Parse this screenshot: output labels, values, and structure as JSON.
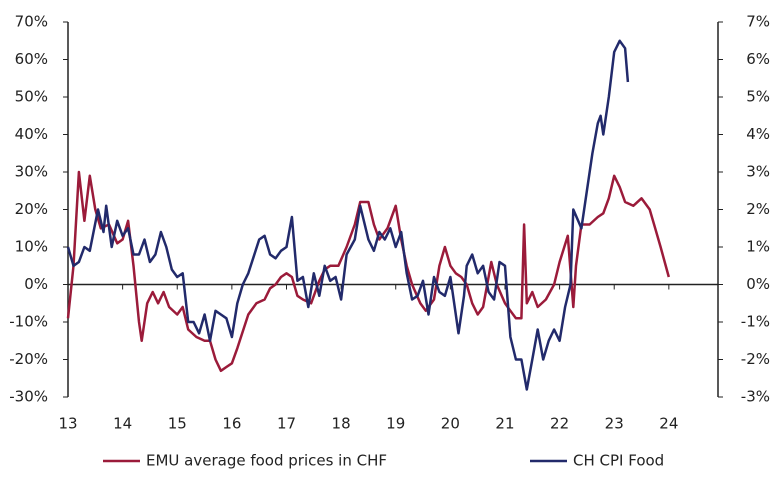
{
  "chart_data": {
    "type": "line",
    "xlim": [
      13,
      24.9
    ],
    "xticks": [
      13,
      14,
      15,
      16,
      17,
      18,
      19,
      20,
      21,
      22,
      23,
      24
    ],
    "ylim": [
      -30,
      70
    ],
    "yticks": [
      {
        "value": -30,
        "label": "-30%"
      },
      {
        "value": -20,
        "label": "-20%"
      },
      {
        "value": -10,
        "label": "-10%"
      },
      {
        "value": 0,
        "label": "0%"
      },
      {
        "value": 10,
        "label": "10%"
      },
      {
        "value": 20,
        "label": "20%"
      },
      {
        "value": 30,
        "label": "30%"
      },
      {
        "value": 40,
        "label": "40%"
      },
      {
        "value": 50,
        "label": "50%"
      },
      {
        "value": 60,
        "label": "60%"
      },
      {
        "value": 70,
        "label": "70%"
      }
    ],
    "y2lim": [
      -3,
      7
    ],
    "y2ticks": [
      {
        "value": -3,
        "label": "-3%"
      },
      {
        "value": -2,
        "label": "-2%"
      },
      {
        "value": -1,
        "label": "-1%"
      },
      {
        "value": 0,
        "label": "0%"
      },
      {
        "value": 1,
        "label": "1%"
      },
      {
        "value": 2,
        "label": "2%"
      },
      {
        "value": 3,
        "label": "3%"
      },
      {
        "value": 4,
        "label": "4%"
      },
      {
        "value": 5,
        "label": "5%"
      },
      {
        "value": 6,
        "label": "6%"
      },
      {
        "value": 7,
        "label": "7%"
      }
    ],
    "series": [
      {
        "name": "EMU average food prices in CHF",
        "color": "#9b1b3a",
        "axis": "y",
        "x": [
          13.0,
          13.1,
          13.2,
          13.3,
          13.4,
          13.5,
          13.6,
          13.75,
          13.9,
          14.0,
          14.1,
          14.2,
          14.3,
          14.35,
          14.45,
          14.55,
          14.65,
          14.75,
          14.85,
          15.0,
          15.1,
          15.2,
          15.35,
          15.5,
          15.6,
          15.7,
          15.8,
          15.9,
          16.0,
          16.1,
          16.3,
          16.45,
          16.6,
          16.7,
          16.8,
          16.9,
          17.0,
          17.1,
          17.2,
          17.3,
          17.45,
          17.6,
          17.7,
          17.8,
          17.95,
          18.1,
          18.25,
          18.35,
          18.5,
          18.6,
          18.7,
          18.85,
          19.0,
          19.1,
          19.2,
          19.3,
          19.45,
          19.55,
          19.7,
          19.8,
          19.9,
          20.0,
          20.1,
          20.2,
          20.3,
          20.4,
          20.5,
          20.6,
          20.75,
          20.85,
          21.0,
          21.1,
          21.2,
          21.3,
          21.35,
          21.4,
          21.5,
          21.6,
          21.75,
          21.9,
          22.0,
          22.15,
          22.25,
          22.3,
          22.4,
          22.55,
          22.7,
          22.8,
          22.9,
          23.0,
          23.1,
          23.2,
          23.35,
          23.5,
          23.65,
          23.75,
          23.85,
          24.0
        ],
        "values": [
          -9,
          5,
          30,
          17,
          29,
          20,
          15,
          16,
          11,
          12,
          17,
          5,
          -10,
          -15,
          -5,
          -2,
          -5,
          -2,
          -6,
          -8,
          -6,
          -12,
          -14,
          -15,
          -15,
          -20,
          -23,
          -22,
          -21,
          -17,
          -8,
          -5,
          -4,
          -1,
          0,
          2,
          3,
          2,
          -3,
          -4,
          -5,
          1,
          4,
          5,
          5,
          10,
          16,
          22,
          22,
          16,
          12,
          15,
          21,
          12,
          5,
          0,
          -5,
          -7,
          -4,
          5,
          10,
          5,
          3,
          2,
          0,
          -5,
          -8,
          -6,
          6,
          0,
          -5,
          -7,
          -9,
          -9,
          16,
          -5,
          -2,
          -6,
          -4,
          0,
          6,
          13,
          -6,
          5,
          16,
          16,
          18,
          19,
          23,
          29,
          26,
          22,
          21,
          23,
          20,
          15,
          10,
          2
        ]
      },
      {
        "name": "CH CPI Food",
        "color": "#222a6b",
        "axis": "y2",
        "x": [
          13.0,
          13.1,
          13.2,
          13.3,
          13.4,
          13.55,
          13.65,
          13.7,
          13.8,
          13.9,
          14.0,
          14.1,
          14.2,
          14.3,
          14.4,
          14.5,
          14.6,
          14.7,
          14.8,
          14.9,
          15.0,
          15.1,
          15.2,
          15.3,
          15.4,
          15.5,
          15.6,
          15.7,
          15.8,
          15.9,
          16.0,
          16.1,
          16.2,
          16.3,
          16.5,
          16.6,
          16.7,
          16.8,
          16.9,
          17.0,
          17.1,
          17.2,
          17.3,
          17.4,
          17.5,
          17.6,
          17.7,
          17.8,
          17.9,
          18.0,
          18.1,
          18.25,
          18.35,
          18.5,
          18.6,
          18.7,
          18.8,
          18.9,
          19.0,
          19.1,
          19.2,
          19.3,
          19.4,
          19.5,
          19.6,
          19.7,
          19.8,
          19.9,
          20.0,
          20.15,
          20.25,
          20.3,
          20.4,
          20.5,
          20.6,
          20.7,
          20.8,
          20.9,
          21.0,
          21.1,
          21.2,
          21.3,
          21.4,
          21.5,
          21.6,
          21.7,
          21.8,
          21.9,
          22.0,
          22.1,
          22.15,
          22.2,
          22.25,
          22.4,
          22.5,
          22.6,
          22.7,
          22.75,
          22.8,
          22.9,
          23.0,
          23.1,
          23.2,
          23.25
        ],
        "values": [
          1.0,
          0.5,
          0.6,
          1.0,
          0.9,
          2.0,
          1.4,
          2.1,
          1.0,
          1.7,
          1.3,
          1.5,
          0.8,
          0.8,
          1.2,
          0.6,
          0.8,
          1.4,
          1.0,
          0.4,
          0.2,
          0.3,
          -1.0,
          -1.0,
          -1.3,
          -0.8,
          -1.5,
          -0.7,
          -0.8,
          -0.9,
          -1.4,
          -0.5,
          0,
          0.3,
          1.2,
          1.3,
          0.8,
          0.7,
          0.9,
          1.0,
          1.8,
          0.1,
          0.2,
          -0.6,
          0.3,
          -0.3,
          0.5,
          0.1,
          0.2,
          -0.4,
          0.8,
          1.2,
          2.1,
          1.2,
          0.9,
          1.4,
          1.2,
          1.5,
          1.0,
          1.4,
          0.3,
          -0.4,
          -0.3,
          0.1,
          -0.8,
          0.2,
          -0.2,
          -0.3,
          0.2,
          -1.3,
          -0.3,
          0.5,
          0.8,
          0.3,
          0.5,
          -0.2,
          -0.4,
          0.6,
          0.5,
          -1.4,
          -2.0,
          -2.0,
          -2.8,
          -2.0,
          -1.2,
          -2.0,
          -1.5,
          -1.2,
          -1.5,
          -0.6,
          -0.3,
          0,
          2.0,
          1.5,
          2.5,
          3.5,
          4.3,
          4.5,
          4.0,
          5.0,
          6.2,
          6.5,
          6.3,
          5.4
        ]
      }
    ]
  }
}
